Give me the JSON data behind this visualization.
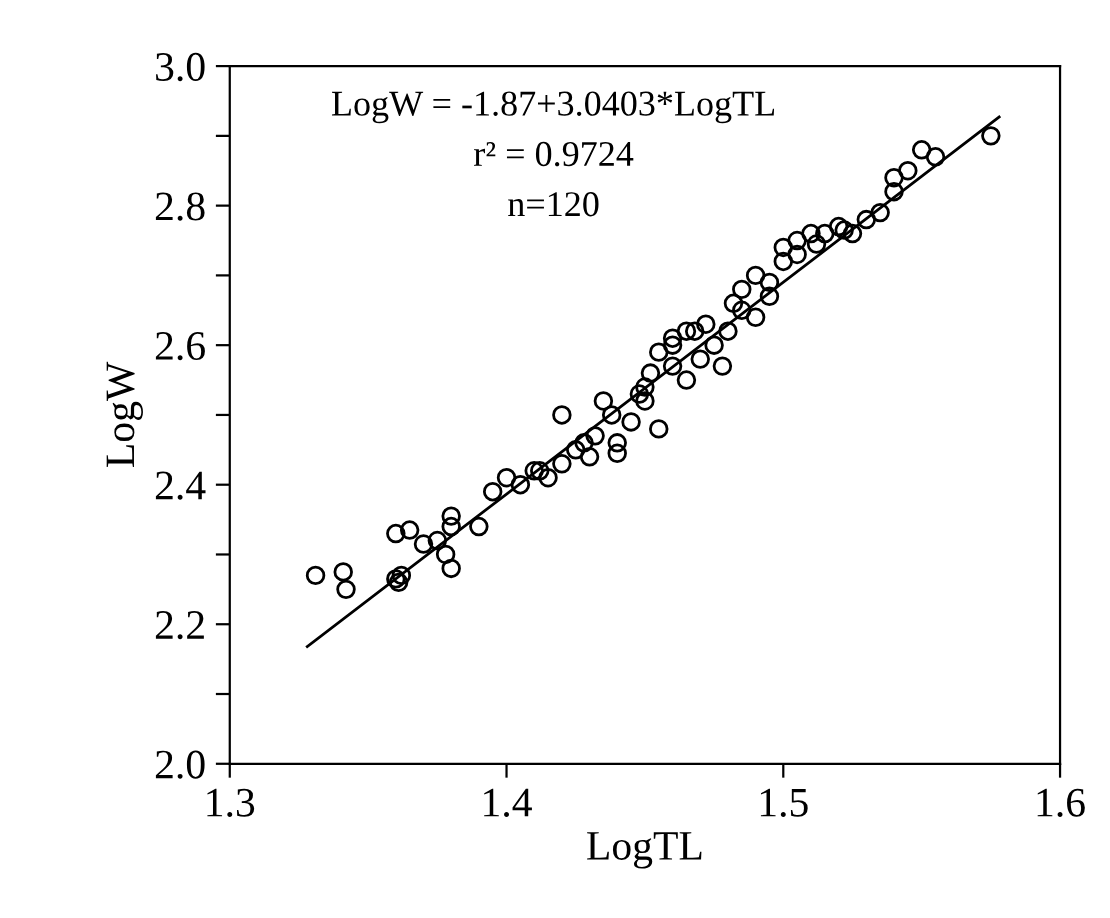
{
  "chart_data": {
    "type": "scatter",
    "xlabel": "LogTL",
    "ylabel": "LogW",
    "annotations": [
      "LogW = -1.87+3.0403*LogTL",
      "r² = 0.9724",
      "n=120"
    ],
    "series": [
      {
        "color": "#000000",
        "marker": "circle",
        "x": [
          1.331,
          1.341,
          1.342,
          1.36,
          1.361,
          1.362,
          1.36,
          1.365,
          1.37,
          1.375,
          1.38,
          1.378,
          1.38,
          1.38,
          1.39,
          1.395,
          1.4,
          1.405,
          1.41,
          1.415,
          1.42,
          1.42,
          1.425,
          1.43,
          1.432,
          1.435,
          1.44,
          1.44,
          1.445,
          1.45,
          1.45,
          1.452,
          1.455,
          1.455,
          1.46,
          1.46,
          1.465,
          1.468,
          1.47,
          1.472,
          1.475,
          1.478,
          1.48,
          1.482,
          1.485,
          1.49,
          1.49,
          1.495,
          1.495,
          1.5,
          1.5,
          1.505,
          1.51,
          1.515,
          1.52,
          1.525,
          1.53,
          1.535,
          1.54,
          1.545,
          1.55,
          1.555,
          1.575,
          1.46,
          1.448,
          1.438,
          1.412,
          1.428,
          1.465,
          1.485,
          1.505,
          1.512,
          1.522,
          1.54
        ],
        "values": [
          2.27,
          2.275,
          2.25,
          2.265,
          2.26,
          2.27,
          2.33,
          2.335,
          2.315,
          2.32,
          2.34,
          2.3,
          2.28,
          2.355,
          2.34,
          2.39,
          2.41,
          2.4,
          2.42,
          2.41,
          2.43,
          2.5,
          2.45,
          2.44,
          2.47,
          2.52,
          2.46,
          2.445,
          2.49,
          2.52,
          2.54,
          2.56,
          2.48,
          2.59,
          2.57,
          2.6,
          2.55,
          2.62,
          2.58,
          2.63,
          2.6,
          2.57,
          2.62,
          2.66,
          2.68,
          2.64,
          2.7,
          2.67,
          2.69,
          2.72,
          2.74,
          2.75,
          2.76,
          2.76,
          2.77,
          2.76,
          2.78,
          2.79,
          2.82,
          2.85,
          2.88,
          2.87,
          2.9,
          2.61,
          2.53,
          2.5,
          2.42,
          2.46,
          2.62,
          2.65,
          2.73,
          2.745,
          2.765,
          2.84
        ]
      },
      {
        "type": "line",
        "color": "#000000",
        "x": [
          1.328,
          1.578
        ],
        "values": [
          2.168,
          2.927
        ]
      }
    ],
    "xlim": [
      1.3,
      1.6
    ],
    "xticks": [
      1.3,
      1.4,
      1.5,
      1.6
    ],
    "ylim": [
      2.0,
      3.0
    ],
    "yticks": [
      {
        "value": 2.0,
        "label": "2.0"
      },
      {
        "value": 2.1,
        "label": null
      },
      2.2,
      {
        "value": 2.3,
        "label": null
      },
      2.4,
      {
        "value": 2.5,
        "label": null
      },
      2.6,
      {
        "value": 2.7,
        "label": null
      },
      2.8,
      {
        "value": 2.9,
        "label": null
      },
      {
        "value": 3.0,
        "label": "3.0"
      }
    ],
    "grid": false,
    "legend": false
  }
}
